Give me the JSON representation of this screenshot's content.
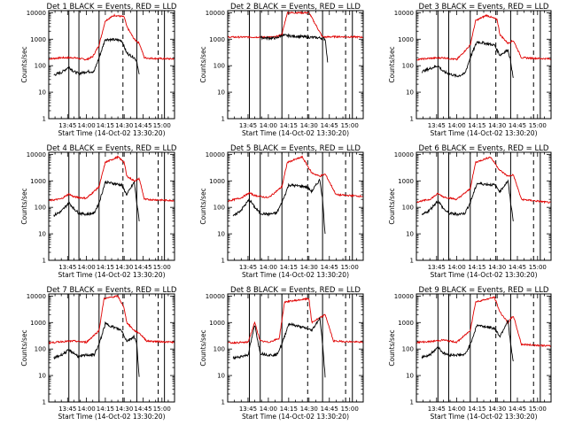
{
  "chart_data": {
    "type": "line",
    "layout": "3x3 grid of detector panels",
    "x_ticks": [
      "13:45",
      "14:00",
      "14:15",
      "14:30",
      "14:45",
      "15:00"
    ],
    "y_ticks": [
      "1",
      "10",
      "100",
      "1000",
      "10000"
    ],
    "y_scale": "log",
    "ylim": [
      1,
      12000
    ],
    "ylabel": "Counts/sec",
    "xlabel": "Start Time (14-Oct-02 13:30:20)",
    "xlim_minutes_since_1330": [
      0,
      100
    ],
    "series_colors": {
      "events": "#000000",
      "lld": "#e00000"
    },
    "panels": [
      {
        "title": "Det 1  BLACK = Events, RED = LLD",
        "solid_lines": [
          16,
          24,
          40,
          70,
          92
        ],
        "dashed_lines": [
          59,
          87
        ],
        "lld": [
          [
            0,
            180
          ],
          [
            10,
            200
          ],
          [
            20,
            200
          ],
          [
            30,
            170
          ],
          [
            35,
            220
          ],
          [
            40,
            600
          ],
          [
            45,
            5000
          ],
          [
            52,
            8000
          ],
          [
            60,
            7000
          ],
          [
            62,
            3000
          ],
          [
            68,
            1000
          ],
          [
            72,
            700
          ],
          [
            76,
            200
          ],
          [
            80,
            190
          ],
          [
            100,
            180
          ]
        ],
        "events": [
          [
            4,
            45
          ],
          [
            10,
            55
          ],
          [
            16,
            90
          ],
          [
            20,
            60
          ],
          [
            24,
            50
          ],
          [
            30,
            60
          ],
          [
            36,
            60
          ],
          [
            40,
            200
          ],
          [
            45,
            1000
          ],
          [
            58,
            900
          ],
          [
            62,
            300
          ],
          [
            68,
            200
          ],
          [
            70,
            150
          ],
          [
            72,
            40
          ]
        ]
      },
      {
        "title": "Det 2  BLACK = Events, RED = LLD",
        "solid_lines": [
          16,
          24,
          40,
          70,
          92
        ],
        "dashed_lines": [
          59,
          87
        ],
        "lld": [
          [
            0,
            1200
          ],
          [
            20,
            1200
          ],
          [
            35,
            1200
          ],
          [
            40,
            1500
          ],
          [
            44,
            10000
          ],
          [
            60,
            10000
          ],
          [
            70,
            1200
          ],
          [
            80,
            1250
          ],
          [
            100,
            1200
          ]
        ],
        "events": [
          [
            24,
            1150
          ],
          [
            30,
            1100
          ],
          [
            36,
            1100
          ],
          [
            40,
            1400
          ],
          [
            70,
            1100
          ],
          [
            72,
            1000
          ],
          [
            74,
            100
          ]
        ]
      },
      {
        "title": "Det 3  BLACK = Events, RED = LLD",
        "solid_lines": [
          16,
          24,
          40,
          70,
          92
        ],
        "dashed_lines": [
          59,
          87
        ],
        "lld": [
          [
            0,
            170
          ],
          [
            10,
            190
          ],
          [
            20,
            200
          ],
          [
            30,
            170
          ],
          [
            40,
            600
          ],
          [
            44,
            5000
          ],
          [
            52,
            8000
          ],
          [
            60,
            5500
          ],
          [
            62,
            1500
          ],
          [
            68,
            700
          ],
          [
            72,
            900
          ],
          [
            78,
            200
          ],
          [
            100,
            180
          ]
        ],
        "events": [
          [
            4,
            60
          ],
          [
            16,
            100
          ],
          [
            20,
            60
          ],
          [
            24,
            50
          ],
          [
            30,
            40
          ],
          [
            36,
            50
          ],
          [
            40,
            200
          ],
          [
            45,
            800
          ],
          [
            58,
            600
          ],
          [
            62,
            250
          ],
          [
            68,
            400
          ],
          [
            70,
            150
          ],
          [
            72,
            30
          ]
        ]
      },
      {
        "title": "Det 4  BLACK = Events, RED = LLD",
        "solid_lines": [
          16,
          24,
          40,
          70,
          92
        ],
        "dashed_lines": [
          59,
          87
        ],
        "lld": [
          [
            0,
            180
          ],
          [
            10,
            210
          ],
          [
            16,
            320
          ],
          [
            20,
            250
          ],
          [
            30,
            220
          ],
          [
            40,
            600
          ],
          [
            45,
            5000
          ],
          [
            55,
            8000
          ],
          [
            60,
            5000
          ],
          [
            62,
            1500
          ],
          [
            68,
            1000
          ],
          [
            72,
            1200
          ],
          [
            76,
            200
          ],
          [
            100,
            180
          ]
        ],
        "events": [
          [
            4,
            50
          ],
          [
            10,
            70
          ],
          [
            16,
            150
          ],
          [
            20,
            90
          ],
          [
            24,
            60
          ],
          [
            30,
            55
          ],
          [
            36,
            60
          ],
          [
            40,
            150
          ],
          [
            45,
            900
          ],
          [
            58,
            700
          ],
          [
            62,
            300
          ],
          [
            68,
            900
          ],
          [
            70,
            150
          ],
          [
            72,
            30
          ]
        ]
      },
      {
        "title": "Det 5  BLACK = Events, RED = LLD",
        "solid_lines": [
          16,
          24,
          40,
          70,
          92
        ],
        "dashed_lines": [
          59,
          87
        ],
        "lld": [
          [
            0,
            170
          ],
          [
            10,
            230
          ],
          [
            16,
            350
          ],
          [
            20,
            280
          ],
          [
            30,
            230
          ],
          [
            40,
            600
          ],
          [
            44,
            5000
          ],
          [
            55,
            8000
          ],
          [
            62,
            2000
          ],
          [
            68,
            1500
          ],
          [
            72,
            1800
          ],
          [
            80,
            300
          ],
          [
            100,
            260
          ]
        ],
        "events": [
          [
            4,
            45
          ],
          [
            10,
            80
          ],
          [
            16,
            200
          ],
          [
            20,
            100
          ],
          [
            24,
            60
          ],
          [
            30,
            55
          ],
          [
            36,
            60
          ],
          [
            40,
            150
          ],
          [
            45,
            700
          ],
          [
            58,
            600
          ],
          [
            62,
            400
          ],
          [
            68,
            1100
          ],
          [
            70,
            200
          ],
          [
            72,
            8
          ]
        ]
      },
      {
        "title": "Det 6  BLACK = Events, RED = LLD",
        "solid_lines": [
          16,
          24,
          40,
          70,
          92
        ],
        "dashed_lines": [
          59,
          87
        ],
        "lld": [
          [
            0,
            160
          ],
          [
            10,
            200
          ],
          [
            16,
            330
          ],
          [
            20,
            250
          ],
          [
            30,
            200
          ],
          [
            40,
            500
          ],
          [
            44,
            5000
          ],
          [
            55,
            8000
          ],
          [
            62,
            2500
          ],
          [
            68,
            1500
          ],
          [
            72,
            1700
          ],
          [
            78,
            200
          ],
          [
            100,
            150
          ]
        ],
        "events": [
          [
            4,
            50
          ],
          [
            10,
            80
          ],
          [
            16,
            180
          ],
          [
            20,
            90
          ],
          [
            24,
            60
          ],
          [
            30,
            55
          ],
          [
            36,
            60
          ],
          [
            40,
            150
          ],
          [
            45,
            800
          ],
          [
            58,
            700
          ],
          [
            62,
            400
          ],
          [
            68,
            1000
          ],
          [
            70,
            150
          ],
          [
            72,
            30
          ]
        ]
      },
      {
        "title": "Det 7  BLACK = Events, RED = LLD",
        "solid_lines": [
          16,
          24,
          40,
          70,
          92
        ],
        "dashed_lines": [
          59,
          87
        ],
        "lld": [
          [
            0,
            170
          ],
          [
            10,
            190
          ],
          [
            20,
            200
          ],
          [
            30,
            180
          ],
          [
            40,
            500
          ],
          [
            44,
            8000
          ],
          [
            55,
            10000
          ],
          [
            60,
            3500
          ],
          [
            62,
            1000
          ],
          [
            68,
            500
          ],
          [
            72,
            400
          ],
          [
            78,
            200
          ],
          [
            100,
            180
          ]
        ],
        "events": [
          [
            4,
            45
          ],
          [
            10,
            60
          ],
          [
            16,
            90
          ],
          [
            20,
            70
          ],
          [
            24,
            50
          ],
          [
            30,
            60
          ],
          [
            36,
            60
          ],
          [
            40,
            150
          ],
          [
            45,
            900
          ],
          [
            58,
            500
          ],
          [
            62,
            200
          ],
          [
            68,
            300
          ],
          [
            70,
            150
          ],
          [
            72,
            8
          ]
        ]
      },
      {
        "title": "Det 8  BLACK = Events, RED = LLD",
        "solid_lines": [
          16,
          24,
          40,
          70,
          92
        ],
        "dashed_lines": [
          59,
          87
        ],
        "lld": [
          [
            0,
            170
          ],
          [
            15,
            180
          ],
          [
            20,
            1000
          ],
          [
            24,
            200
          ],
          [
            30,
            180
          ],
          [
            38,
            250
          ],
          [
            42,
            6000
          ],
          [
            60,
            8000
          ],
          [
            62,
            1000
          ],
          [
            68,
            1500
          ],
          [
            72,
            2000
          ],
          [
            78,
            200
          ],
          [
            100,
            180
          ]
        ],
        "events": [
          [
            4,
            45
          ],
          [
            15,
            60
          ],
          [
            20,
            800
          ],
          [
            24,
            70
          ],
          [
            30,
            60
          ],
          [
            36,
            60
          ],
          [
            40,
            150
          ],
          [
            45,
            900
          ],
          [
            58,
            600
          ],
          [
            62,
            500
          ],
          [
            68,
            1500
          ],
          [
            70,
            150
          ],
          [
            72,
            8
          ]
        ]
      },
      {
        "title": "Det 9  BLACK = Events, RED = LLD",
        "solid_lines": [
          16,
          24,
          40,
          70,
          92
        ],
        "dashed_lines": [
          59,
          87
        ],
        "lld": [
          [
            0,
            180
          ],
          [
            10,
            190
          ],
          [
            20,
            220
          ],
          [
            30,
            180
          ],
          [
            40,
            500
          ],
          [
            44,
            6000
          ],
          [
            58,
            9000
          ],
          [
            62,
            2500
          ],
          [
            68,
            1000
          ],
          [
            72,
            1800
          ],
          [
            78,
            150
          ],
          [
            100,
            130
          ]
        ],
        "events": [
          [
            4,
            50
          ],
          [
            10,
            60
          ],
          [
            16,
            120
          ],
          [
            20,
            70
          ],
          [
            24,
            60
          ],
          [
            30,
            60
          ],
          [
            36,
            60
          ],
          [
            40,
            150
          ],
          [
            45,
            800
          ],
          [
            58,
            600
          ],
          [
            62,
            300
          ],
          [
            68,
            1200
          ],
          [
            70,
            150
          ],
          [
            72,
            30
          ]
        ]
      }
    ]
  }
}
